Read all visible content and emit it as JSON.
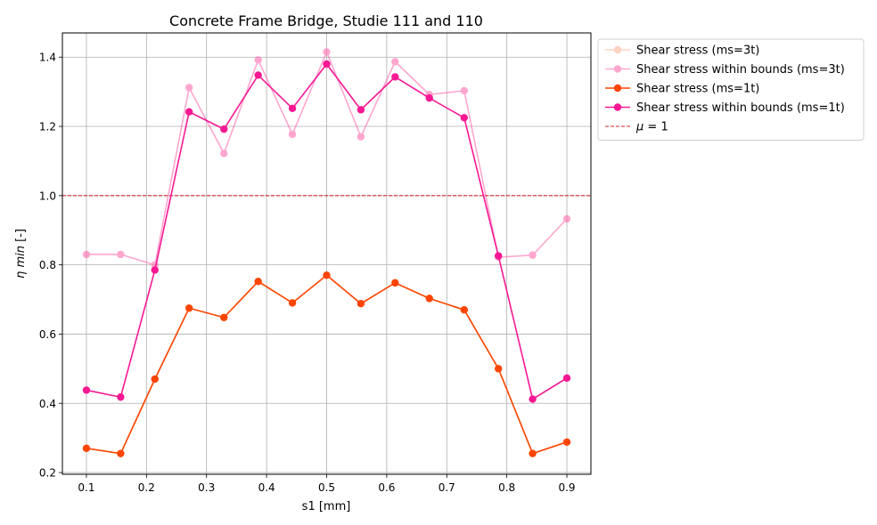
{
  "chart_data": {
    "type": "line",
    "title": "Concrete Frame Bridge, Studie 111 and 110",
    "xlabel": "s1 [mm]",
    "ylabel_symbol": "η",
    "ylabel_text": "min",
    "ylabel_unit": "[-]",
    "xlim": [
      0.06,
      0.94
    ],
    "ylim": [
      0.195,
      1.47
    ],
    "xticks": [
      "0.1",
      "0.2",
      "0.3",
      "0.4",
      "0.5",
      "0.6",
      "0.7",
      "0.8",
      "0.9"
    ],
    "yticks": [
      "0.2",
      "0.4",
      "0.6",
      "0.8",
      "1.0",
      "1.2",
      "1.4"
    ],
    "grid": true,
    "legend_position": "outside-right",
    "x": [
      0.1,
      0.157,
      0.214,
      0.271,
      0.329,
      0.386,
      0.443,
      0.5,
      0.557,
      0.614,
      0.671,
      0.729,
      0.786,
      0.843,
      0.9
    ],
    "series": [
      {
        "name": "Shear stress (ms=3t)",
        "color": "#ff7f50",
        "alpha": 0.35,
        "values": [
          0.27,
          0.255,
          0.47,
          0.675,
          0.648,
          0.752,
          0.69,
          0.77,
          0.688,
          0.748,
          0.703,
          0.67,
          0.5,
          0.255,
          0.288
        ]
      },
      {
        "name": "Shear stress within bounds (ms=3t)",
        "color": "#ff5ea8",
        "alpha": 0.55,
        "values": [
          0.83,
          0.83,
          0.8,
          1.312,
          1.122,
          1.392,
          1.177,
          1.415,
          1.17,
          1.387,
          1.292,
          1.303,
          0.822,
          0.828,
          0.933
        ]
      },
      {
        "name": "Shear stress (ms=1t)",
        "color": "#ff4500",
        "alpha": 1,
        "values": [
          0.27,
          0.255,
          0.47,
          0.675,
          0.648,
          0.752,
          0.69,
          0.77,
          0.688,
          0.748,
          0.703,
          0.67,
          0.5,
          0.255,
          0.288
        ]
      },
      {
        "name": "Shear stress within bounds (ms=1t)",
        "color": "#f81894",
        "alpha": 1,
        "values": [
          0.438,
          0.418,
          0.785,
          1.242,
          1.192,
          1.348,
          1.252,
          1.38,
          1.248,
          1.343,
          1.282,
          1.225,
          0.826,
          0.412,
          0.473
        ]
      }
    ],
    "reference_line": {
      "y": 1.0,
      "color": "#d62728",
      "label_symbol": "μ",
      "label_rest": " = 1"
    }
  }
}
